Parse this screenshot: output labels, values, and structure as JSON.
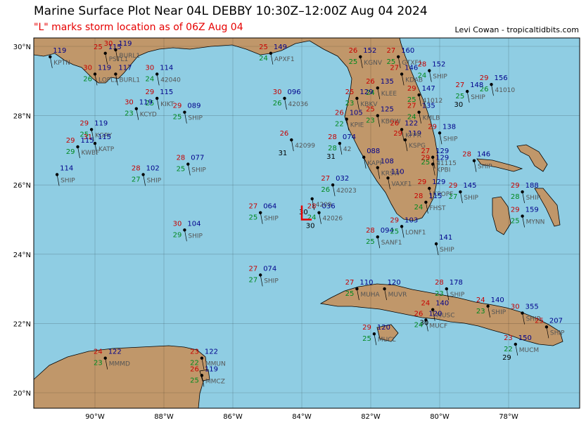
{
  "header": {
    "title": "Marine Surface Plot Near 04L DEBBY 10:30Z–12:00Z Aug 04 2024",
    "subtitle": "\"L\" marks storm location as of 06Z Aug 04",
    "credit": "Levi Cowan - tropicaltidbits.com"
  },
  "colors": {
    "ocean": "#8fcde3",
    "land": "#c0976a",
    "temperature": "#c80000",
    "dewpoint": "#00891f",
    "pressure": "#00008b",
    "storm_marker": "#e60000"
  },
  "axes": {
    "lon_labels": [
      "90°W",
      "88°W",
      "86°W",
      "84°W",
      "82°W",
      "80°W",
      "78°W"
    ],
    "lat_labels": [
      "30°N",
      "28°N",
      "26°N",
      "24°N",
      "22°N",
      "20°N"
    ]
  },
  "storm": {
    "marker": "L",
    "lat": 25.0,
    "lon": -84.0
  },
  "stations": [
    {
      "id": "KPTN",
      "lon": -91.3,
      "lat": 29.7,
      "p": "119"
    },
    {
      "id": "PSTL1",
      "lon": -89.7,
      "lat": 29.8,
      "t": "25",
      "d": "",
      "p": "115"
    },
    {
      "id": "BURL1",
      "lon": -89.4,
      "lat": 29.9,
      "t": "30",
      "p": "119"
    },
    {
      "id": "LOPL1",
      "lon": -90.0,
      "lat": 29.2,
      "t": "30",
      "d": "26",
      "p": "119"
    },
    {
      "id": "BURL1",
      "lon": -89.4,
      "lat": 29.2,
      "t": "",
      "p": "117"
    },
    {
      "id": "42040",
      "lon": -88.2,
      "lat": 29.2,
      "t": "30",
      "d": "24",
      "p": "114"
    },
    {
      "id": "KIKT",
      "lon": -88.2,
      "lat": 28.5,
      "t": "29",
      "d": "25",
      "p": "115"
    },
    {
      "id": "KCYD",
      "lon": -88.8,
      "lat": 28.2,
      "t": "30",
      "d": "23",
      "p": "119"
    },
    {
      "id": "SHIP",
      "lon": -87.4,
      "lat": 28.1,
      "t": "29",
      "d": "25",
      "p": "089"
    },
    {
      "id": "KGRY",
      "lon": -90.1,
      "lat": 27.6,
      "t": "29",
      "d": "25",
      "p": "119"
    },
    {
      "id": "KATP",
      "lon": -90.0,
      "lat": 27.2,
      "t": "31",
      "d": "",
      "p": "115"
    },
    {
      "id": "KWBF",
      "lon": -90.5,
      "lat": 27.1,
      "t": "29",
      "d": "29",
      "p": "115"
    },
    {
      "id": "SHIP",
      "lon": -91.1,
      "lat": 26.3,
      "p": "114"
    },
    {
      "id": "SHIP",
      "lon": -88.6,
      "lat": 26.3,
      "t": "28",
      "d": "27",
      "p": "102"
    },
    {
      "id": "SHIP",
      "lon": -87.3,
      "lat": 26.6,
      "t": "28",
      "d": "25",
      "p": "077"
    },
    {
      "id": "SHIP",
      "lon": -87.4,
      "lat": 24.7,
      "t": "30",
      "d": "29",
      "p": "104"
    },
    {
      "id": "APXF1",
      "lon": -84.9,
      "lat": 29.8,
      "t": "25",
      "d": "24",
      "p": "149"
    },
    {
      "id": "42036",
      "lon": -84.5,
      "lat": 28.5,
      "t": "30",
      "d": "26",
      "p": "096"
    },
    {
      "id": "42099",
      "lon": -84.3,
      "lat": 27.3,
      "t": "26",
      "b": "31"
    },
    {
      "id": "SHIP",
      "lon": -85.2,
      "lat": 25.2,
      "t": "27",
      "d": "25",
      "p": "064"
    },
    {
      "id": "42026",
      "lon": -83.5,
      "lat": 25.2,
      "t": "28",
      "d": "24",
      "p": "036",
      "b": "30"
    },
    {
      "id": "4209",
      "lon": -83.7,
      "lat": 25.6,
      "t": "",
      "p": "",
      "b": "30"
    },
    {
      "id": "42023",
      "lon": -83.1,
      "lat": 26.0,
      "t": "27",
      "d": "26",
      "p": "032"
    },
    {
      "id": "SHIP",
      "lon": -85.2,
      "lat": 23.4,
      "t": "27",
      "d": "27",
      "p": "074"
    },
    {
      "id": "42",
      "lon": -82.9,
      "lat": 27.2,
      "t": "28",
      "d": "28",
      "p": "074",
      "b": "31"
    },
    {
      "id": "SANF1",
      "lon": -81.8,
      "lat": 24.5,
      "t": "28",
      "d": "25",
      "p": "094"
    },
    {
      "id": "LONF1",
      "lon": -81.1,
      "lat": 24.8,
      "t": "29",
      "d": "25",
      "p": "103"
    },
    {
      "id": "KGNV",
      "lon": -82.3,
      "lat": 29.7,
      "t": "26",
      "d": "25",
      "p": "152"
    },
    {
      "id": "GTXF1",
      "lon": -81.2,
      "lat": 29.7,
      "t": "27",
      "d": "25",
      "p": "160"
    },
    {
      "id": "KDAB",
      "lon": -81.1,
      "lat": 29.2,
      "t": "27",
      "d": "",
      "p": "146"
    },
    {
      "id": "SHIP",
      "lon": -80.3,
      "lat": 29.3,
      "t": "28",
      "d": "24",
      "p": "152"
    },
    {
      "id": "41010",
      "lon": -78.5,
      "lat": 28.9,
      "t": "29",
      "d": "26",
      "p": "156"
    },
    {
      "id": "SHIP",
      "lon": -79.2,
      "lat": 28.7,
      "t": "27",
      "d": "25",
      "p": "148",
      "b": "30"
    },
    {
      "id": "41012",
      "lon": -80.6,
      "lat": 28.6,
      "t": "29",
      "d": "25",
      "p": "147"
    },
    {
      "id": "KLEE",
      "lon": -81.8,
      "lat": 28.8,
      "t": "26",
      "d": "24",
      "p": "135"
    },
    {
      "id": "KBKV",
      "lon": -82.4,
      "lat": 28.5,
      "t": "25",
      "d": "23",
      "p": "129"
    },
    {
      "id": "KMLB",
      "lon": -80.6,
      "lat": 28.1,
      "t": "27",
      "d": "24",
      "p": "135"
    },
    {
      "id": "KBOW",
      "lon": -81.8,
      "lat": 28.0,
      "t": "25",
      "d": "23",
      "p": "125"
    },
    {
      "id": "KPIE",
      "lon": -82.7,
      "lat": 27.9,
      "t": "26",
      "d": "22",
      "p": "105"
    },
    {
      "id": "SHIP",
      "lon": -80.0,
      "lat": 27.5,
      "t": "29",
      "d": "",
      "p": "138"
    },
    {
      "id": "KSPG",
      "lon": -81.0,
      "lat": 27.3,
      "t": "29",
      "d": "",
      "p": "119"
    },
    {
      "id": "KFPR",
      "lon": -81.1,
      "lat": 27.6,
      "t": "26",
      "d": "",
      "p": "122"
    },
    {
      "id": "41115",
      "lon": -80.2,
      "lat": 26.8,
      "t": "27",
      "d": "25",
      "p": "129"
    },
    {
      "id": "KRSW",
      "lon": -81.8,
      "lat": 26.5,
      "t": "",
      "d": "",
      "p": "108"
    },
    {
      "id": "KAPF",
      "lon": -82.2,
      "lat": 26.8,
      "t": "",
      "d": "",
      "p": "088"
    },
    {
      "id": "VAXF1",
      "lon": -81.5,
      "lat": 26.2,
      "t": "",
      "d": "",
      "p": "110"
    },
    {
      "id": "KPBI",
      "lon": -80.2,
      "lat": 26.6,
      "t": "29",
      "d": "",
      "p": "129"
    },
    {
      "id": "KPOPF",
      "lon": -80.3,
      "lat": 25.9,
      "t": "29",
      "d": "",
      "p": "129"
    },
    {
      "id": "SHIP",
      "lon": -79.4,
      "lat": 25.8,
      "t": "29",
      "d": "27",
      "p": "145"
    },
    {
      "id": "FHST",
      "lon": -80.4,
      "lat": 25.5,
      "t": "28",
      "d": "24",
      "p": "115"
    },
    {
      "id": "SHIP",
      "lon": -79.0,
      "lat": 26.7,
      "t": "28",
      "p": "146"
    },
    {
      "id": "SHIP",
      "lon": -77.6,
      "lat": 25.8,
      "t": "29",
      "d": "28",
      "p": "188"
    },
    {
      "id": "MYNN",
      "lon": -77.6,
      "lat": 25.1,
      "t": "29",
      "d": "25",
      "p": "159"
    },
    {
      "id": "SHIP",
      "lon": -80.1,
      "lat": 24.3,
      "p": "141"
    },
    {
      "id": "MUHA",
      "lon": -82.4,
      "lat": 23.0,
      "t": "27",
      "d": "25",
      "p": "110"
    },
    {
      "id": "MUVR",
      "lon": -81.6,
      "lat": 23.0,
      "t": "",
      "p": "120"
    },
    {
      "id": "SHIP",
      "lon": -79.8,
      "lat": 23.0,
      "t": "28",
      "d": "23",
      "p": "178"
    },
    {
      "id": "MUSC",
      "lon": -80.2,
      "lat": 22.4,
      "t": "24",
      "d": "",
      "p": "140",
      "b": "30"
    },
    {
      "id": "SHIP",
      "lon": -78.6,
      "lat": 22.5,
      "t": "24",
      "d": "23",
      "p": "140"
    },
    {
      "id": "MUCF",
      "lon": -80.4,
      "lat": 22.1,
      "t": "26",
      "d": "24",
      "p": "120"
    },
    {
      "id": "SHIP",
      "lon": -77.6,
      "lat": 22.3,
      "t": "30",
      "p": "355"
    },
    {
      "id": "MUCM",
      "lon": -77.8,
      "lat": 21.4,
      "t": "23",
      "d": "22",
      "p": "150",
      "b": "29"
    },
    {
      "id": "SHIP",
      "lon": -76.9,
      "lat": 21.9,
      "t": "25",
      "p": "207"
    },
    {
      "id": "MUCL",
      "lon": -81.9,
      "lat": 21.7,
      "t": "29",
      "d": "25",
      "p": "120"
    },
    {
      "id": "MMMD",
      "lon": -89.7,
      "lat": 21.0,
      "t": "24",
      "d": "23",
      "p": "122"
    },
    {
      "id": "MMUN",
      "lon": -86.9,
      "lat": 21.0,
      "t": "23",
      "d": "22",
      "p": "122"
    },
    {
      "id": "MMCZ",
      "lon": -86.9,
      "lat": 20.5,
      "t": "26",
      "d": "25",
      "p": "119"
    }
  ]
}
